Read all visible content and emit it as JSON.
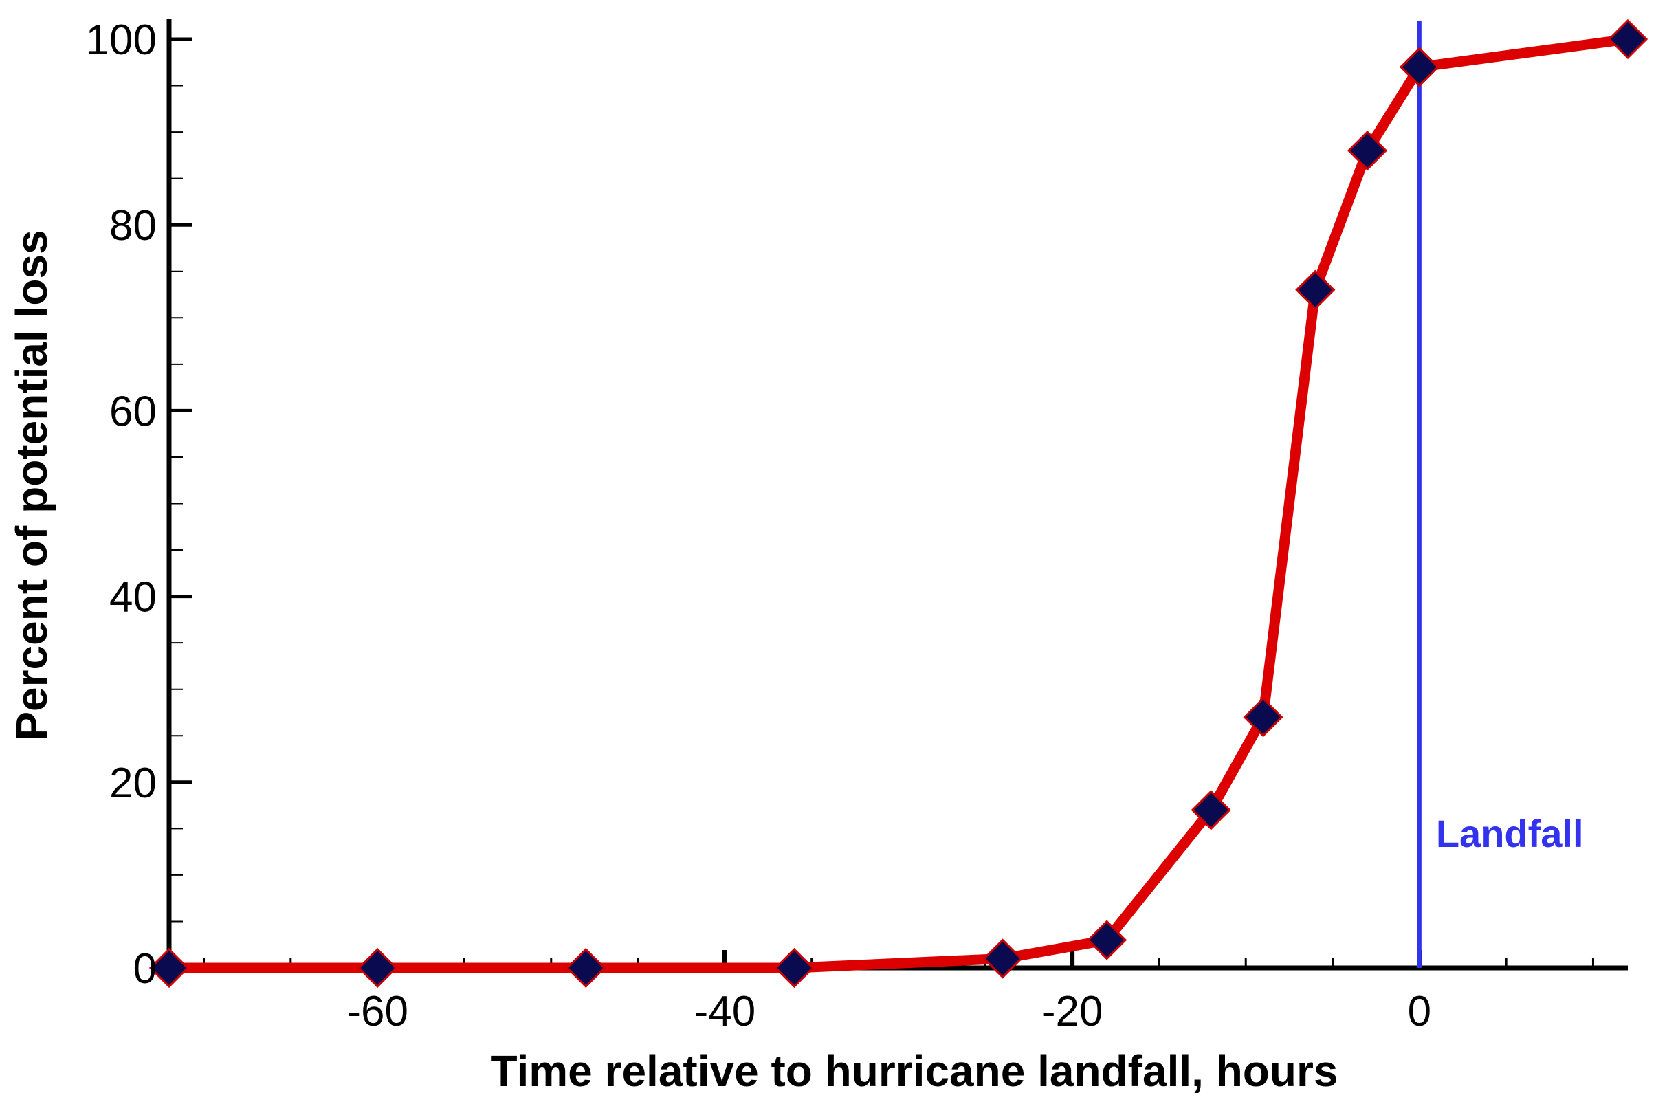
{
  "chart_data": {
    "type": "line",
    "xlabel": "Time relative to hurricane landfall, hours",
    "ylabel": "Percent of potential loss",
    "xlim": [
      -72,
      12
    ],
    "ylim": [
      0,
      100
    ],
    "xticks": [
      -60,
      -40,
      -20,
      0
    ],
    "yticks": [
      0,
      20,
      40,
      60,
      80,
      100
    ],
    "x_minor_step": 5,
    "y_minor_step": 5,
    "grid": false,
    "series": [
      {
        "x": [
          -72,
          -60,
          -48,
          -36,
          -24,
          -18,
          -12,
          -9,
          -6,
          -3,
          0,
          12
        ],
        "values": [
          0,
          0,
          0,
          0,
          1,
          3,
          17,
          27,
          73,
          88,
          97,
          100
        ],
        "line_color": "#dd0000",
        "marker": "diamond",
        "marker_color": "#0a0a50",
        "marker_edge_color": "#cc0000"
      }
    ],
    "annotations": [
      {
        "type": "vertical-line",
        "x": 0,
        "label": "Landfall",
        "color": "#3333ee"
      }
    ]
  }
}
